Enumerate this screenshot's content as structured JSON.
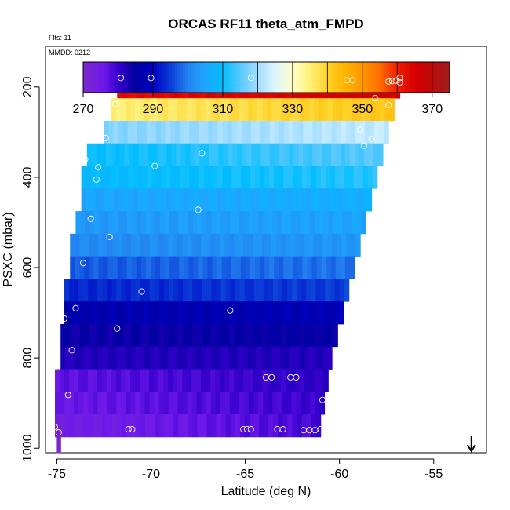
{
  "chart_data": {
    "type": "heatmap",
    "title": "ORCAS RF11 theta_atm_FMPD",
    "subtitle": "Flts: 11",
    "annotation": "MMDD: 0212",
    "xlabel": "Latitude (deg N)",
    "ylabel": "PSXC (mbar)",
    "xlim": [
      -75.6,
      -52.2
    ],
    "ylim": [
      1010,
      110
    ],
    "x_ticks": [
      -75,
      -70,
      -65,
      -60,
      -55
    ],
    "x_tick_labels": [
      "-75",
      "-70",
      "-65",
      "-60",
      "-55"
    ],
    "y_ticks": [
      200,
      400,
      600,
      800,
      1000
    ],
    "y_tick_labels": [
      "200",
      "400",
      "600",
      "800",
      "1000"
    ],
    "colorbar": {
      "range": [
        270,
        375
      ],
      "ticks": [
        270,
        290,
        310,
        330,
        350,
        370
      ],
      "tick_labels": [
        "270",
        "290",
        "310",
        "330",
        "350",
        "370"
      ],
      "divisions": [
        280,
        290,
        300,
        310,
        320,
        330,
        340,
        350,
        360,
        370
      ]
    },
    "pressure_bands": [
      {
        "p_top": 175,
        "p_bot": 225,
        "lat_left": -71.8,
        "lat_right": -56.8,
        "theta_left": 363,
        "theta_right": 367
      },
      {
        "p_top": 225,
        "p_bot": 275,
        "lat_left": -72.1,
        "lat_right": -57.1,
        "theta_left": 335,
        "theta_right": 342
      },
      {
        "p_top": 275,
        "p_bot": 325,
        "lat_left": -72.5,
        "lat_right": -57.4,
        "theta_left": 318,
        "theta_right": 323
      },
      {
        "p_top": 325,
        "p_bot": 375,
        "lat_left": -73.4,
        "lat_right": -57.7,
        "theta_left": 310,
        "theta_right": 315
      },
      {
        "p_top": 375,
        "p_bot": 425,
        "lat_left": -73.7,
        "lat_right": -58.0,
        "theta_left": 309,
        "theta_right": 312
      },
      {
        "p_top": 425,
        "p_bot": 475,
        "lat_left": -73.7,
        "lat_right": -58.3,
        "theta_left": 305,
        "theta_right": 307
      },
      {
        "p_top": 475,
        "p_bot": 525,
        "lat_left": -74.0,
        "lat_right": -58.6,
        "theta_left": 303,
        "theta_right": 305
      },
      {
        "p_top": 525,
        "p_bot": 575,
        "lat_left": -74.3,
        "lat_right": -58.9,
        "theta_left": 301,
        "theta_right": 303
      },
      {
        "p_top": 575,
        "p_bot": 625,
        "lat_left": -74.3,
        "lat_right": -59.2,
        "theta_left": 297,
        "theta_right": 299
      },
      {
        "p_top": 625,
        "p_bot": 675,
        "lat_left": -74.6,
        "lat_right": -59.5,
        "theta_left": 293,
        "theta_right": 295
      },
      {
        "p_top": 675,
        "p_bot": 725,
        "lat_left": -74.6,
        "lat_right": -59.8,
        "theta_left": 287,
        "theta_right": 288
      },
      {
        "p_top": 725,
        "p_bot": 775,
        "lat_left": -74.8,
        "lat_right": -60.1,
        "theta_left": 284,
        "theta_right": 285
      },
      {
        "p_top": 775,
        "p_bot": 825,
        "lat_left": -74.8,
        "lat_right": -60.4,
        "theta_left": 282,
        "theta_right": 282
      },
      {
        "p_top": 825,
        "p_bot": 875,
        "lat_left": -75.1,
        "lat_right": -60.6,
        "theta_left": 277,
        "theta_right": 281
      },
      {
        "p_top": 875,
        "p_bot": 925,
        "lat_left": -75.1,
        "lat_right": -60.8,
        "theta_left": 276,
        "theta_right": 280
      },
      {
        "p_top": 925,
        "p_bot": 975,
        "lat_left": -75.1,
        "lat_right": -61.0,
        "theta_left": 274,
        "theta_right": 279
      },
      {
        "p_top": 975,
        "p_bot": 1010,
        "lat_left": -75.0,
        "lat_right": -74.8,
        "theta_left": 271,
        "theta_right": 271
      }
    ],
    "points": [
      {
        "lat": -71.6,
        "p": 180
      },
      {
        "lat": -70.0,
        "p": 180
      },
      {
        "lat": -64.7,
        "p": 180
      },
      {
        "lat": -59.6,
        "p": 185
      },
      {
        "lat": -59.3,
        "p": 185
      },
      {
        "lat": -57.4,
        "p": 188
      },
      {
        "lat": -57.2,
        "p": 187
      },
      {
        "lat": -57.0,
        "p": 186
      },
      {
        "lat": -56.8,
        "p": 180
      },
      {
        "lat": -56.8,
        "p": 190
      },
      {
        "lat": -71.9,
        "p": 238
      },
      {
        "lat": -58.1,
        "p": 225
      },
      {
        "lat": -57.4,
        "p": 240
      },
      {
        "lat": -58.9,
        "p": 295
      },
      {
        "lat": -58.7,
        "p": 330
      },
      {
        "lat": -58.3,
        "p": 315
      },
      {
        "lat": -72.4,
        "p": 313
      },
      {
        "lat": -73.2,
        "p": 318
      },
      {
        "lat": -67.3,
        "p": 347
      },
      {
        "lat": -73.5,
        "p": 360
      },
      {
        "lat": -72.8,
        "p": 378
      },
      {
        "lat": -69.8,
        "p": 375
      },
      {
        "lat": -72.9,
        "p": 405
      },
      {
        "lat": -67.5,
        "p": 472
      },
      {
        "lat": -73.2,
        "p": 492
      },
      {
        "lat": -74.2,
        "p": 515
      },
      {
        "lat": -72.2,
        "p": 532
      },
      {
        "lat": -73.6,
        "p": 590
      },
      {
        "lat": -70.5,
        "p": 653
      },
      {
        "lat": -74.0,
        "p": 690
      },
      {
        "lat": -65.8,
        "p": 695
      },
      {
        "lat": -74.6,
        "p": 713
      },
      {
        "lat": -71.8,
        "p": 735
      },
      {
        "lat": -74.2,
        "p": 783
      },
      {
        "lat": -63.9,
        "p": 843
      },
      {
        "lat": -63.6,
        "p": 843
      },
      {
        "lat": -62.6,
        "p": 843
      },
      {
        "lat": -62.3,
        "p": 843
      },
      {
        "lat": -60.9,
        "p": 893
      },
      {
        "lat": -74.4,
        "p": 882
      },
      {
        "lat": -75.1,
        "p": 953
      },
      {
        "lat": -74.9,
        "p": 965
      },
      {
        "lat": -71.2,
        "p": 958
      },
      {
        "lat": -71.0,
        "p": 958
      },
      {
        "lat": -65.1,
        "p": 958
      },
      {
        "lat": -64.9,
        "p": 958
      },
      {
        "lat": -64.7,
        "p": 958
      },
      {
        "lat": -63.3,
        "p": 958
      },
      {
        "lat": -63.0,
        "p": 958
      },
      {
        "lat": -61.9,
        "p": 960
      },
      {
        "lat": -61.6,
        "p": 960
      },
      {
        "lat": -61.3,
        "p": 960
      },
      {
        "lat": -61.0,
        "p": 958
      }
    ],
    "arrow_lat": -53.0
  }
}
